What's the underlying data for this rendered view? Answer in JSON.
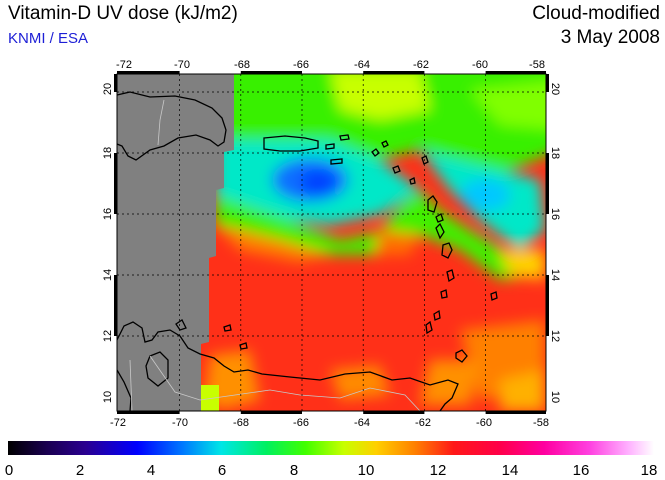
{
  "header": {
    "title": "Vitamin-D UV dose (kJ/m2)",
    "credit": "KNMI / ESA",
    "mode": "Cloud-modified",
    "date": "3 May 2008"
  },
  "map": {
    "lon_ticks": [
      "-72",
      "-70",
      "-68",
      "-66",
      "-64",
      "-62",
      "-60",
      "-58"
    ],
    "lat_ticks": [
      "10",
      "12",
      "14",
      "16",
      "18",
      "20"
    ],
    "colorbar_ticks": [
      "0",
      "2",
      "4",
      "6",
      "8",
      "10",
      "12",
      "14",
      "16",
      "18"
    ],
    "colors": {
      "nodata": "#808080",
      "land_outline": "#000000",
      "border_outline": "#c8c8c8",
      "grid": "#000000"
    }
  }
}
